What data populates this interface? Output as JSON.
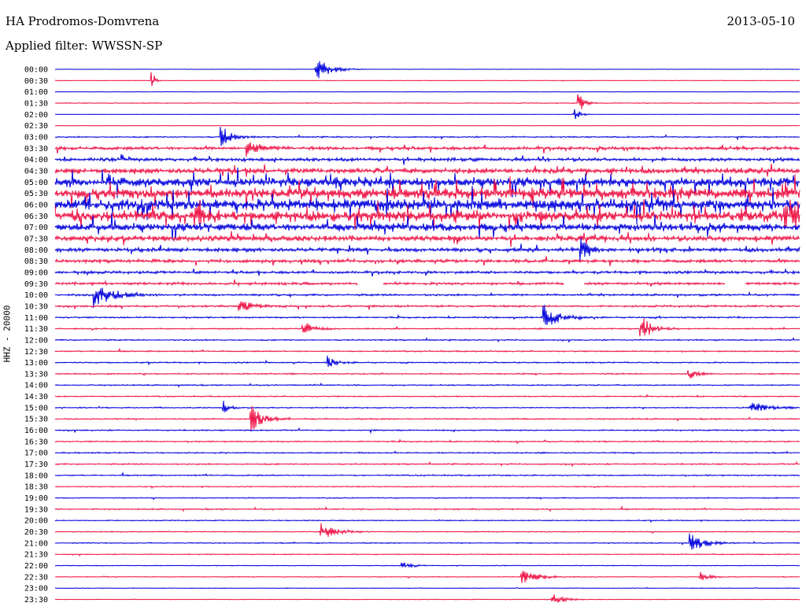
{
  "header": {
    "station": "HA Prodromos-Domvrena",
    "date": "2013-05-10",
    "filter_prefix": "Applied filter:",
    "filter_name": "WWSSN-SP"
  },
  "channel_label": "HHZ - 20000",
  "colors": {
    "odd_row": "#0000dd",
    "even_row": "#ee1144",
    "background": "#ffffff",
    "text": "#000000"
  },
  "chart_data": {
    "type": "line",
    "title": "HA Prodromos-Domvrena",
    "subtitle": "Applied filter: WWSSN-SP",
    "ylabel": "HHZ - 20000",
    "xlabel": "",
    "row_labels": [
      "00:00",
      "00:30",
      "01:00",
      "01:30",
      "02:00",
      "02:30",
      "03:00",
      "03:30",
      "04:00",
      "04:30",
      "05:00",
      "05:30",
      "06:00",
      "06:30",
      "07:00",
      "07:30",
      "08:00",
      "08:30",
      "09:00",
      "09:30",
      "10:00",
      "10:30",
      "11:00",
      "11:30",
      "12:00",
      "12:30",
      "13:00",
      "13:30",
      "14:00",
      "14:30",
      "15:00",
      "15:30",
      "16:00",
      "16:30",
      "17:00",
      "17:30",
      "18:00",
      "18:30",
      "19:00",
      "19:30",
      "20:00",
      "20:30",
      "21:00",
      "21:30",
      "22:00",
      "22:30",
      "23:00",
      "23:30"
    ],
    "row_minutes": 30,
    "row_noise": [
      0.3,
      0.35,
      0.3,
      0.6,
      0.25,
      0.3,
      1.0,
      2.5,
      2.5,
      4.0,
      7.0,
      8.0,
      8.5,
      8.0,
      6.0,
      4.0,
      3.0,
      2.5,
      2.0,
      2.0,
      1.5,
      1.5,
      1.2,
      1.0,
      1.0,
      1.0,
      1.0,
      1.0,
      0.9,
      0.9,
      0.9,
      1.0,
      1.0,
      1.0,
      1.0,
      1.0,
      1.0,
      0.8,
      0.8,
      1.0,
      0.8,
      0.8,
      0.8,
      0.7,
      0.6,
      0.6,
      0.5,
      0.5
    ],
    "gaps": [
      {
        "row": "09:30",
        "start_min": 12.2,
        "end_min": 13.2
      },
      {
        "row": "09:30",
        "start_min": 20.5,
        "end_min": 21.3
      },
      {
        "row": "09:30",
        "start_min": 27.0,
        "end_min": 27.8
      }
    ],
    "events": [
      {
        "row": "00:00",
        "minute": 10.5,
        "amp": 18,
        "dur": 0.5
      },
      {
        "row": "00:30",
        "minute": 3.9,
        "amp": 16,
        "dur": 0.1
      },
      {
        "row": "01:30",
        "minute": 21.1,
        "amp": 14,
        "dur": 0.2
      },
      {
        "row": "02:00",
        "minute": 20.9,
        "amp": 12,
        "dur": 0.2
      },
      {
        "row": "03:00",
        "minute": 6.7,
        "amp": 14,
        "dur": 0.4
      },
      {
        "row": "03:30",
        "minute": 7.7,
        "amp": 10,
        "dur": 0.4
      },
      {
        "row": "06:30",
        "minute": 5.6,
        "amp": 18,
        "dur": 0.3
      },
      {
        "row": "06:30",
        "minute": 29.4,
        "amp": 14,
        "dur": 0.4
      },
      {
        "row": "08:00",
        "minute": 21.2,
        "amp": 16,
        "dur": 0.3
      },
      {
        "row": "10:00",
        "minute": 1.6,
        "amp": 16,
        "dur": 0.7
      },
      {
        "row": "10:30",
        "minute": 7.4,
        "amp": 8,
        "dur": 0.5
      },
      {
        "row": "11:00",
        "minute": 19.7,
        "amp": 18,
        "dur": 0.5
      },
      {
        "row": "11:30",
        "minute": 10.0,
        "amp": 9,
        "dur": 0.4
      },
      {
        "row": "11:30",
        "minute": 23.6,
        "amp": 18,
        "dur": 0.4
      },
      {
        "row": "13:00",
        "minute": 11.0,
        "amp": 8,
        "dur": 0.3
      },
      {
        "row": "13:30",
        "minute": 25.5,
        "amp": 8,
        "dur": 0.3
      },
      {
        "row": "15:00",
        "minute": 6.8,
        "amp": 8,
        "dur": 0.2
      },
      {
        "row": "15:00",
        "minute": 28.0,
        "amp": 9,
        "dur": 0.6
      },
      {
        "row": "15:30",
        "minute": 7.9,
        "amp": 18,
        "dur": 0.4
      },
      {
        "row": "20:30",
        "minute": 10.7,
        "amp": 12,
        "dur": 0.5
      },
      {
        "row": "21:00",
        "minute": 25.6,
        "amp": 12,
        "dur": 0.5
      },
      {
        "row": "22:00",
        "minute": 14.0,
        "amp": 6,
        "dur": 0.3
      },
      {
        "row": "22:30",
        "minute": 18.8,
        "amp": 10,
        "dur": 0.6
      },
      {
        "row": "22:30",
        "minute": 26.0,
        "amp": 7,
        "dur": 0.3
      },
      {
        "row": "23:30",
        "minute": 20.0,
        "amp": 8,
        "dur": 0.4
      }
    ],
    "grid": false,
    "legend": "none"
  }
}
